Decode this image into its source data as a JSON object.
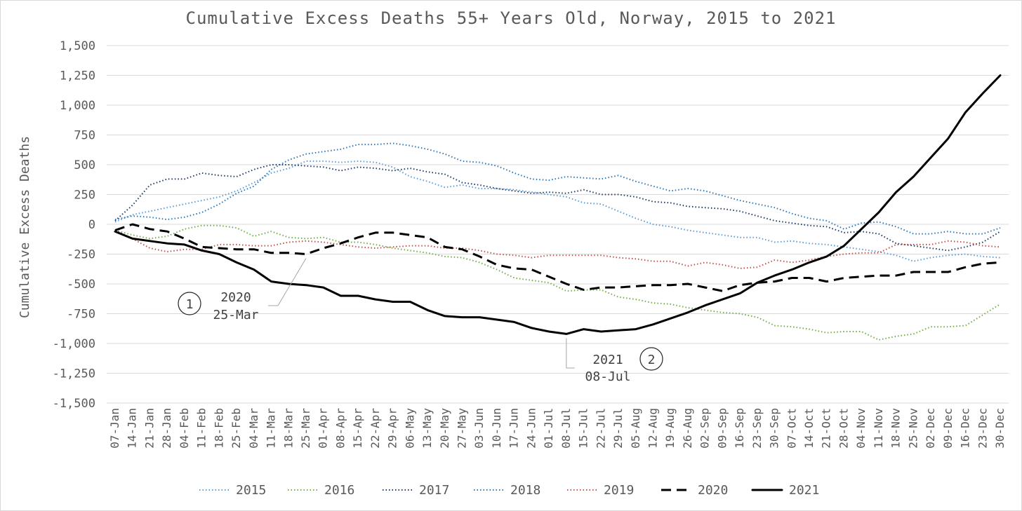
{
  "chart_data": {
    "type": "line",
    "title": "Cumulative Excess Deaths 55+ Years Old, Norway, 2015 to 2021",
    "ylabel": "Cumulative Excess Deaths",
    "xlabel": "",
    "ylim": [
      -1500,
      1500
    ],
    "yticks": [
      1500,
      1250,
      1000,
      750,
      500,
      250,
      0,
      -250,
      -500,
      -750,
      -1000,
      -1250,
      -1500
    ],
    "ytick_labels": [
      "1,500",
      "1,250",
      "1,000",
      "750",
      "500",
      "250",
      "0",
      "-250",
      "-500",
      "-750",
      "-1,000",
      "-1,250",
      "-1,500"
    ],
    "grid": "horizontal",
    "legend_position": "bottom",
    "categories": [
      "07-Jan",
      "14-Jan",
      "21-Jan",
      "28-Jan",
      "04-Feb",
      "11-Feb",
      "18-Feb",
      "25-Feb",
      "04-Mar",
      "11-Mar",
      "18-Mar",
      "25-Mar",
      "01-Apr",
      "08-Apr",
      "15-Apr",
      "22-Apr",
      "29-Apr",
      "06-May",
      "13-May",
      "20-May",
      "27-May",
      "03-Jun",
      "10-Jun",
      "17-Jun",
      "24-Jun",
      "01-Jul",
      "08-Jul",
      "15-Jul",
      "22-Jul",
      "29-Jul",
      "05-Aug",
      "12-Aug",
      "19-Aug",
      "26-Aug",
      "02-Sep",
      "09-Sep",
      "16-Sep",
      "23-Sep",
      "30-Sep",
      "07-Oct",
      "14-Oct",
      "21-Oct",
      "28-Oct",
      "04-Nov",
      "11-Nov",
      "18-Nov",
      "25-Nov",
      "02-Dec",
      "09-Dec",
      "16-Dec",
      "23-Dec",
      "30-Dec"
    ],
    "series": [
      {
        "name": "2015",
        "color": "#5b9bd5",
        "style": "dotted",
        "values": [
          20,
          80,
          110,
          140,
          170,
          200,
          230,
          280,
          350,
          430,
          470,
          530,
          530,
          520,
          530,
          520,
          480,
          400,
          360,
          310,
          330,
          300,
          300,
          290,
          270,
          250,
          230,
          180,
          170,
          110,
          50,
          0,
          -20,
          -50,
          -70,
          -90,
          -110,
          -110,
          -150,
          -140,
          -160,
          -170,
          -190,
          -210,
          -230,
          -260,
          -310,
          -280,
          -260,
          -250,
          -270,
          -280
        ]
      },
      {
        "name": "2016",
        "color": "#70ad47",
        "style": "dotted",
        "values": [
          -50,
          -90,
          -120,
          -100,
          -40,
          -10,
          -10,
          -30,
          -100,
          -60,
          -110,
          -120,
          -110,
          -150,
          -150,
          -170,
          -200,
          -220,
          -240,
          -270,
          -280,
          -320,
          -380,
          -450,
          -470,
          -490,
          -560,
          -550,
          -550,
          -610,
          -630,
          -660,
          -670,
          -700,
          -720,
          -740,
          -750,
          -780,
          -850,
          -860,
          -880,
          -910,
          -900,
          -900,
          -970,
          -940,
          -920,
          -860,
          -860,
          -850,
          -760,
          -670
        ]
      },
      {
        "name": "2017",
        "color": "#203864",
        "style": "dotted",
        "values": [
          30,
          160,
          330,
          380,
          380,
          430,
          410,
          400,
          460,
          500,
          500,
          490,
          480,
          450,
          480,
          470,
          450,
          470,
          440,
          420,
          350,
          330,
          300,
          280,
          260,
          270,
          260,
          290,
          250,
          250,
          230,
          190,
          180,
          150,
          140,
          130,
          110,
          70,
          30,
          10,
          -10,
          -20,
          -70,
          -60,
          -80,
          -160,
          -180,
          -200,
          -220,
          -190,
          -150,
          -60
        ]
      },
      {
        "name": "2018",
        "color": "#2e75b6",
        "style": "dotted",
        "values": [
          40,
          70,
          60,
          40,
          60,
          100,
          170,
          260,
          320,
          460,
          540,
          590,
          610,
          630,
          670,
          670,
          680,
          660,
          630,
          590,
          530,
          520,
          490,
          430,
          380,
          370,
          400,
          390,
          380,
          410,
          360,
          320,
          280,
          300,
          280,
          240,
          200,
          170,
          140,
          90,
          50,
          30,
          -40,
          10,
          20,
          -20,
          -80,
          -80,
          -60,
          -80,
          -80,
          -30
        ]
      },
      {
        "name": "2019",
        "color": "#c0504d",
        "style": "dotted",
        "values": [
          -50,
          -120,
          -200,
          -230,
          -210,
          -210,
          -170,
          -170,
          -180,
          -180,
          -150,
          -140,
          -150,
          -170,
          -190,
          -200,
          -190,
          -180,
          -180,
          -200,
          -200,
          -220,
          -250,
          -260,
          -280,
          -260,
          -260,
          -260,
          -260,
          -280,
          -290,
          -310,
          -310,
          -350,
          -320,
          -340,
          -370,
          -360,
          -300,
          -320,
          -300,
          -270,
          -250,
          -240,
          -240,
          -170,
          -170,
          -170,
          -140,
          -150,
          -180,
          -190
        ]
      },
      {
        "name": "2020",
        "color": "#000000",
        "style": "dashed",
        "values": [
          -50,
          0,
          -40,
          -60,
          -120,
          -190,
          -200,
          -210,
          -210,
          -240,
          -240,
          -250,
          -200,
          -160,
          -110,
          -70,
          -70,
          -90,
          -110,
          -190,
          -210,
          -270,
          -340,
          -370,
          -380,
          -440,
          -500,
          -550,
          -530,
          -530,
          -520,
          -510,
          -510,
          -500,
          -530,
          -560,
          -510,
          -490,
          -480,
          -450,
          -450,
          -480,
          -450,
          -440,
          -430,
          -430,
          -400,
          -400,
          -400,
          -360,
          -330,
          -320
        ]
      },
      {
        "name": "2021",
        "color": "#000000",
        "style": "solid",
        "values": [
          -60,
          -120,
          -140,
          -160,
          -170,
          -220,
          -250,
          -320,
          -380,
          -480,
          -500,
          -510,
          -530,
          -600,
          -600,
          -630,
          -650,
          -650,
          -720,
          -770,
          -780,
          -780,
          -800,
          -820,
          -870,
          -900,
          -920,
          -880,
          -900,
          -890,
          -880,
          -840,
          -790,
          -740,
          -680,
          -630,
          -580,
          -490,
          -430,
          -380,
          -320,
          -270,
          -180,
          -40,
          100,
          270,
          400,
          560,
          720,
          940,
          1100,
          1250
        ]
      }
    ],
    "annotations": [
      {
        "marker": "1",
        "line1": "2020",
        "line2": "25-Mar",
        "series": "2020",
        "date": "25-Mar",
        "value": -250
      },
      {
        "marker": "2",
        "line1": "2021",
        "line2": "08-Jul",
        "series": "2021",
        "date": "08-Jul",
        "value": -920
      }
    ]
  }
}
